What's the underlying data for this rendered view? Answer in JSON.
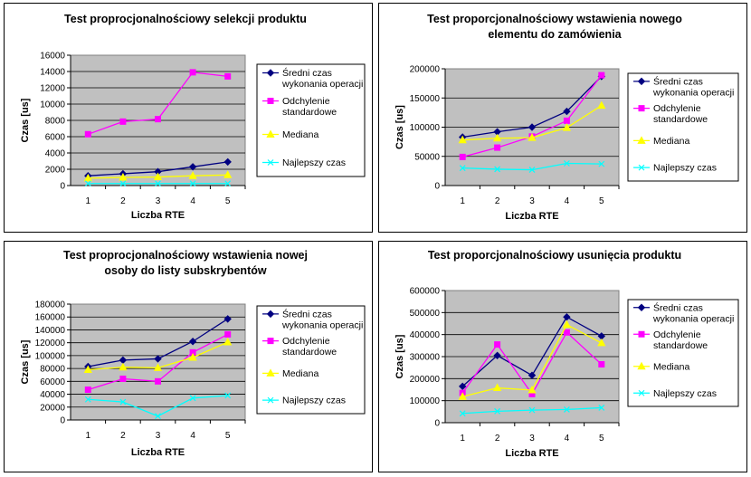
{
  "chart_data": [
    {
      "type": "line",
      "title": [
        "Test proprocjonalnościowy selekcji produktu"
      ],
      "xlabel": "Liczba RTE",
      "ylabel": "Czas [us]",
      "categories": [
        "1",
        "2",
        "3",
        "4",
        "5"
      ],
      "ylim": [
        0,
        16000
      ],
      "yticks": [
        "0",
        "2000",
        "4000",
        "6000",
        "8000",
        "10000",
        "12000",
        "14000",
        "16000"
      ],
      "grid": true,
      "legend_position": "right",
      "series": [
        {
          "name": [
            "Średni czas",
            "wykonania operacji"
          ],
          "color": "#000080",
          "marker": "diamond",
          "values": [
            1200,
            1450,
            1700,
            2300,
            2900
          ]
        },
        {
          "name": [
            "Odchylenie",
            "standardowe"
          ],
          "color": "#FF00FF",
          "marker": "square",
          "values": [
            6300,
            7850,
            8150,
            13900,
            13400
          ]
        },
        {
          "name": [
            "Mediana"
          ],
          "color": "#FFFF00",
          "marker": "triangle",
          "values": [
            900,
            1000,
            1050,
            1200,
            1300
          ]
        },
        {
          "name": [
            "Najlepszy czas"
          ],
          "color": "#00FFFF",
          "marker": "x",
          "values": [
            250,
            250,
            250,
            250,
            250
          ]
        }
      ]
    },
    {
      "type": "line",
      "title": [
        "Test proporcjonalnościowy wstawienia nowego",
        "elementu do zamówienia"
      ],
      "xlabel": "Liczba RTE",
      "ylabel": "Czas [us]",
      "categories": [
        "1",
        "2",
        "3",
        "4",
        "5"
      ],
      "ylim": [
        0,
        200000
      ],
      "yticks": [
        "0",
        "50000",
        "100000",
        "150000",
        "200000"
      ],
      "grid": true,
      "legend_position": "right",
      "series": [
        {
          "name": [
            "Średni czas",
            "wykonania operacji"
          ],
          "color": "#000080",
          "marker": "diamond",
          "values": [
            83000,
            92000,
            100000,
            127000,
            187000
          ]
        },
        {
          "name": [
            "Odchylenie",
            "standardowe"
          ],
          "color": "#FF00FF",
          "marker": "square",
          "values": [
            49000,
            65000,
            84000,
            111000,
            189000
          ]
        },
        {
          "name": [
            "Mediana"
          ],
          "color": "#FFFF00",
          "marker": "triangle",
          "values": [
            78000,
            81000,
            82000,
            99000,
            137000
          ]
        },
        {
          "name": [
            "Najlepszy czas"
          ],
          "color": "#00FFFF",
          "marker": "x",
          "values": [
            30000,
            28000,
            27000,
            38000,
            37000
          ]
        }
      ]
    },
    {
      "type": "line",
      "title": [
        "Test proprocjonalnościowy wstawienia nowej",
        "osoby do listy subskrybentów"
      ],
      "xlabel": "Liczba RTE",
      "ylabel": "Czas [us]",
      "categories": [
        "1",
        "2",
        "3",
        "4",
        "5"
      ],
      "ylim": [
        0,
        180000
      ],
      "yticks": [
        "0",
        "20000",
        "40000",
        "60000",
        "80000",
        "100000",
        "120000",
        "140000",
        "160000",
        "180000"
      ],
      "grid": true,
      "legend_position": "right",
      "series": [
        {
          "name": [
            "Średni czas",
            "wykonania operacji"
          ],
          "color": "#000080",
          "marker": "diamond",
          "values": [
            83000,
            93000,
            95000,
            122000,
            157000
          ]
        },
        {
          "name": [
            "Odchylenie",
            "standardowe"
          ],
          "color": "#FF00FF",
          "marker": "square",
          "values": [
            47000,
            64000,
            60000,
            105000,
            133000
          ]
        },
        {
          "name": [
            "Mediana"
          ],
          "color": "#FFFF00",
          "marker": "triangle",
          "values": [
            78000,
            82000,
            81000,
            97000,
            121000
          ]
        },
        {
          "name": [
            "Najlepszy czas"
          ],
          "color": "#00FFFF",
          "marker": "x",
          "values": [
            32000,
            28000,
            6000,
            34000,
            38000
          ]
        }
      ]
    },
    {
      "type": "line",
      "title": [
        "Test proporcjonalnościowy usunięcia produktu"
      ],
      "xlabel": "Liczba RTE",
      "ylabel": "Czas [us]",
      "categories": [
        "1",
        "2",
        "3",
        "4",
        "5"
      ],
      "ylim": [
        0,
        600000
      ],
      "yticks": [
        "0",
        "100000",
        "200000",
        "300000",
        "400000",
        "500000",
        "600000"
      ],
      "grid": true,
      "legend_position": "right",
      "series": [
        {
          "name": [
            "Średni czas",
            "wykonania operacji"
          ],
          "color": "#000080",
          "marker": "diamond",
          "values": [
            165000,
            305000,
            215000,
            480000,
            393000
          ]
        },
        {
          "name": [
            "Odchylenie",
            "standardowe"
          ],
          "color": "#FF00FF",
          "marker": "square",
          "values": [
            135000,
            355000,
            130000,
            410000,
            265000
          ]
        },
        {
          "name": [
            "Mediana"
          ],
          "color": "#FFFF00",
          "marker": "triangle",
          "values": [
            118000,
            158000,
            148000,
            445000,
            362000
          ]
        },
        {
          "name": [
            "Najlepszy czas"
          ],
          "color": "#00FFFF",
          "marker": "x",
          "values": [
            42000,
            52000,
            57000,
            60000,
            68000
          ]
        }
      ]
    }
  ]
}
